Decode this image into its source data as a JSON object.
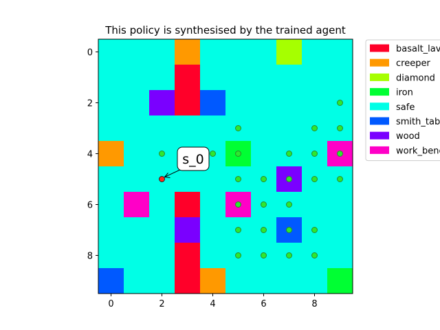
{
  "chart_data": {
    "type": "heatmap",
    "title": "This policy is synthesised by the trained agent",
    "xlabel": "",
    "ylabel": "",
    "x_ticks": [
      0,
      2,
      4,
      6,
      8
    ],
    "y_ticks": [
      0,
      2,
      4,
      6,
      8
    ],
    "grid_size": [
      10,
      10
    ],
    "legend": [
      {
        "label": "basalt_lava",
        "color": "#ff0029"
      },
      {
        "label": "creeper",
        "color": "#ff9900"
      },
      {
        "label": "diamond",
        "color": "#a6ff00"
      },
      {
        "label": "iron",
        "color": "#00ff33"
      },
      {
        "label": "safe",
        "color": "#00ffe6"
      },
      {
        "label": "smith_table",
        "color": "#0059ff"
      },
      {
        "label": "wood",
        "color": "#7a00ff"
      },
      {
        "label": "work_bench",
        "color": "#ff00c7"
      }
    ],
    "cells": [
      {
        "x": 3,
        "y": 0,
        "type": "creeper"
      },
      {
        "x": 7,
        "y": 0,
        "type": "diamond"
      },
      {
        "x": 3,
        "y": 1,
        "type": "basalt_lava"
      },
      {
        "x": 2,
        "y": 2,
        "type": "wood"
      },
      {
        "x": 3,
        "y": 2,
        "type": "basalt_lava"
      },
      {
        "x": 4,
        "y": 2,
        "type": "smith_table"
      },
      {
        "x": 0,
        "y": 4,
        "type": "creeper"
      },
      {
        "x": 5,
        "y": 4,
        "type": "iron"
      },
      {
        "x": 9,
        "y": 4,
        "type": "work_bench"
      },
      {
        "x": 7,
        "y": 5,
        "type": "wood"
      },
      {
        "x": 1,
        "y": 6,
        "type": "work_bench"
      },
      {
        "x": 3,
        "y": 6,
        "type": "basalt_lava"
      },
      {
        "x": 5,
        "y": 6,
        "type": "work_bench"
      },
      {
        "x": 3,
        "y": 7,
        "type": "wood"
      },
      {
        "x": 7,
        "y": 7,
        "type": "smith_table"
      },
      {
        "x": 3,
        "y": 8,
        "type": "basalt_lava"
      },
      {
        "x": 0,
        "y": 9,
        "type": "smith_table"
      },
      {
        "x": 3,
        "y": 9,
        "type": "basalt_lava"
      },
      {
        "x": 4,
        "y": 9,
        "type": "creeper"
      },
      {
        "x": 9,
        "y": 9,
        "type": "iron"
      }
    ],
    "policy_points": [
      {
        "x": 9,
        "y": 2
      },
      {
        "x": 5,
        "y": 3
      },
      {
        "x": 8,
        "y": 3
      },
      {
        "x": 9,
        "y": 3
      },
      {
        "x": 2,
        "y": 4
      },
      {
        "x": 4,
        "y": 4
      },
      {
        "x": 5,
        "y": 4
      },
      {
        "x": 7,
        "y": 4
      },
      {
        "x": 8,
        "y": 4
      },
      {
        "x": 9,
        "y": 4
      },
      {
        "x": 5,
        "y": 5
      },
      {
        "x": 6,
        "y": 5
      },
      {
        "x": 7,
        "y": 5
      },
      {
        "x": 8,
        "y": 5
      },
      {
        "x": 9,
        "y": 5
      },
      {
        "x": 5,
        "y": 6
      },
      {
        "x": 6,
        "y": 6
      },
      {
        "x": 7,
        "y": 6
      },
      {
        "x": 5,
        "y": 7
      },
      {
        "x": 6,
        "y": 7
      },
      {
        "x": 7,
        "y": 7
      },
      {
        "x": 8,
        "y": 7
      },
      {
        "x": 5,
        "y": 8
      },
      {
        "x": 6,
        "y": 8
      },
      {
        "x": 7,
        "y": 8
      },
      {
        "x": 8,
        "y": 8
      }
    ],
    "policy_point_color": "#2ee82e",
    "start": {
      "x": 2,
      "y": 5,
      "color": "#ff2a1a"
    },
    "annotation": {
      "text": "s_0",
      "x": 2,
      "y": 5
    }
  }
}
